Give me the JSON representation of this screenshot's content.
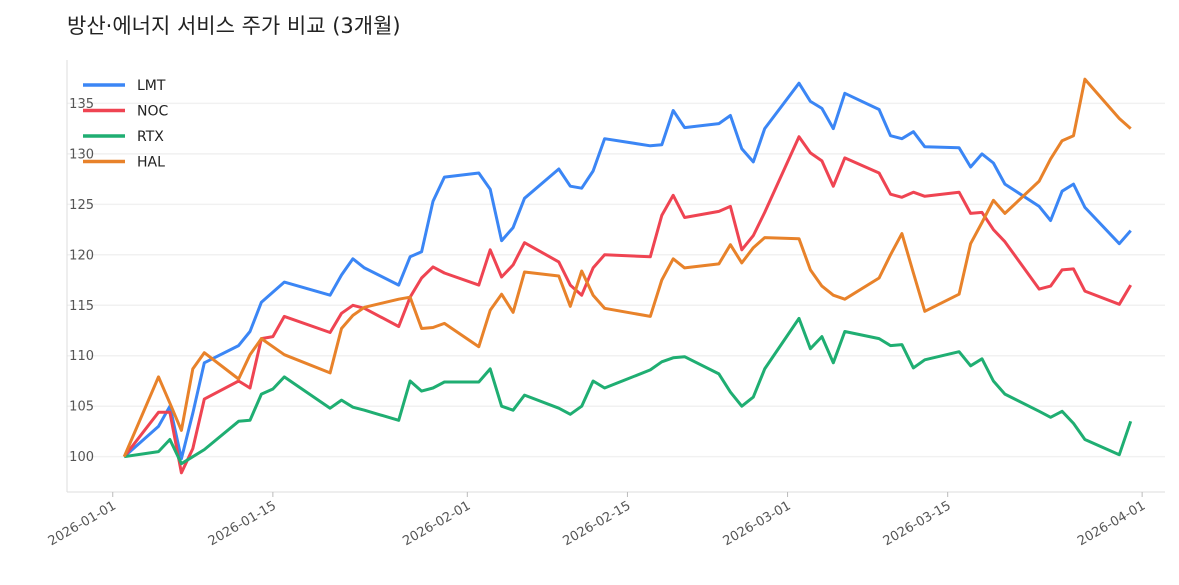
{
  "chart_data": {
    "type": "line",
    "title": "방산·에너지 서비스 주가 비교 (3개월)",
    "xlabel": "",
    "ylabel": "",
    "ylim": [
      96.5,
      139.3
    ],
    "xlim": [
      "2025-12-28",
      "2026-04-03"
    ],
    "grid": "horizontal",
    "legend": "top-left",
    "yticks": [
      100,
      105,
      110,
      115,
      120,
      125,
      130,
      135
    ],
    "xticks": [
      "2026-01-01",
      "2026-01-15",
      "2026-02-01",
      "2026-02-15",
      "2026-03-01",
      "2026-03-15",
      "2026-04-01"
    ],
    "x": [
      "2026-01-02",
      "2026-01-05",
      "2026-01-06",
      "2026-01-07",
      "2026-01-08",
      "2026-01-09",
      "2026-01-12",
      "2026-01-13",
      "2026-01-14",
      "2026-01-15",
      "2026-01-16",
      "2026-01-20",
      "2026-01-21",
      "2026-01-22",
      "2026-01-23",
      "2026-01-26",
      "2026-01-27",
      "2026-01-28",
      "2026-01-29",
      "2026-01-30",
      "2026-02-02",
      "2026-02-03",
      "2026-02-04",
      "2026-02-05",
      "2026-02-06",
      "2026-02-09",
      "2026-02-10",
      "2026-02-11",
      "2026-02-12",
      "2026-02-13",
      "2026-02-17",
      "2026-02-18",
      "2026-02-19",
      "2026-02-20",
      "2026-02-23",
      "2026-02-24",
      "2026-02-25",
      "2026-02-26",
      "2026-02-27",
      "2026-03-02",
      "2026-03-03",
      "2026-03-04",
      "2026-03-05",
      "2026-03-06",
      "2026-03-09",
      "2026-03-10",
      "2026-03-11",
      "2026-03-12",
      "2026-03-13",
      "2026-03-16",
      "2026-03-17",
      "2026-03-18",
      "2026-03-19",
      "2026-03-20",
      "2026-03-23",
      "2026-03-24",
      "2026-03-25",
      "2026-03-26",
      "2026-03-27",
      "2026-03-30",
      "2026-03-31"
    ],
    "series": [
      {
        "name": "LMT",
        "color": "#3b86f5",
        "values": [
          100,
          103.0,
          105.0,
          99.8,
          104.3,
          109.3,
          111.0,
          112.4,
          115.3,
          116.3,
          117.3,
          116.0,
          118.0,
          119.6,
          118.7,
          117.0,
          119.8,
          120.3,
          125.3,
          127.7,
          128.1,
          126.5,
          121.4,
          122.7,
          125.6,
          128.5,
          126.8,
          126.6,
          128.3,
          131.5,
          130.8,
          130.9,
          134.3,
          132.6,
          133.0,
          133.8,
          130.5,
          129.2,
          132.5,
          137.0,
          135.2,
          134.5,
          132.5,
          136.0,
          134.4,
          131.8,
          131.5,
          132.2,
          130.7,
          130.6,
          128.7,
          130.0,
          129.1,
          127.0,
          124.8,
          123.4,
          126.3,
          127.0,
          124.7,
          121.1,
          122.4
        ]
      },
      {
        "name": "NOC",
        "color": "#ef4452",
        "values": [
          100,
          104.4,
          104.4,
          98.4,
          100.8,
          105.7,
          107.5,
          106.8,
          111.7,
          111.9,
          113.9,
          112.3,
          114.2,
          115.0,
          114.7,
          112.9,
          115.8,
          117.7,
          118.8,
          118.2,
          117.0,
          120.5,
          117.8,
          119.0,
          121.2,
          119.3,
          117.0,
          116.0,
          118.7,
          120.0,
          119.8,
          123.9,
          125.9,
          123.7,
          124.3,
          124.8,
          120.5,
          121.9,
          124.2,
          131.7,
          130.1,
          129.3,
          126.8,
          129.6,
          128.1,
          126.0,
          125.7,
          126.2,
          125.8,
          126.2,
          124.1,
          124.2,
          122.5,
          121.3,
          116.6,
          116.9,
          118.5,
          118.6,
          116.4,
          115.1,
          117.0
        ]
      },
      {
        "name": "RTX",
        "color": "#1fae72",
        "values": [
          100,
          100.5,
          101.7,
          99.3,
          100.0,
          100.7,
          103.5,
          103.6,
          106.2,
          106.7,
          107.9,
          104.8,
          105.6,
          104.9,
          104.6,
          103.6,
          107.5,
          106.5,
          106.8,
          107.4,
          107.4,
          108.7,
          105.0,
          104.6,
          106.1,
          104.8,
          104.2,
          105.0,
          107.5,
          106.8,
          108.6,
          109.4,
          109.8,
          109.9,
          108.2,
          106.4,
          105.0,
          105.9,
          108.7,
          113.7,
          110.7,
          111.9,
          109.3,
          112.4,
          111.7,
          111.0,
          111.1,
          108.8,
          109.6,
          110.4,
          109.0,
          109.7,
          107.5,
          106.2,
          104.5,
          103.9,
          104.5,
          103.3,
          101.7,
          100.2,
          103.5
        ]
      },
      {
        "name": "HAL",
        "color": "#e8822a",
        "values": [
          100,
          107.9,
          105.3,
          102.6,
          108.7,
          110.3,
          107.7,
          110.1,
          111.7,
          110.9,
          110.1,
          108.3,
          112.7,
          114.0,
          114.8,
          115.6,
          115.8,
          112.7,
          112.8,
          113.2,
          110.9,
          114.5,
          116.1,
          114.3,
          118.3,
          117.9,
          114.9,
          118.4,
          116.0,
          114.7,
          113.9,
          117.5,
          119.6,
          118.7,
          119.1,
          121.0,
          119.2,
          120.7,
          121.7,
          121.6,
          118.5,
          116.9,
          116.0,
          115.6,
          117.7,
          120.0,
          122.1,
          118.2,
          114.4,
          116.1,
          121.1,
          123.2,
          125.4,
          124.1,
          127.3,
          129.5,
          131.3,
          131.8,
          137.4,
          133.5,
          132.5
        ]
      }
    ]
  }
}
